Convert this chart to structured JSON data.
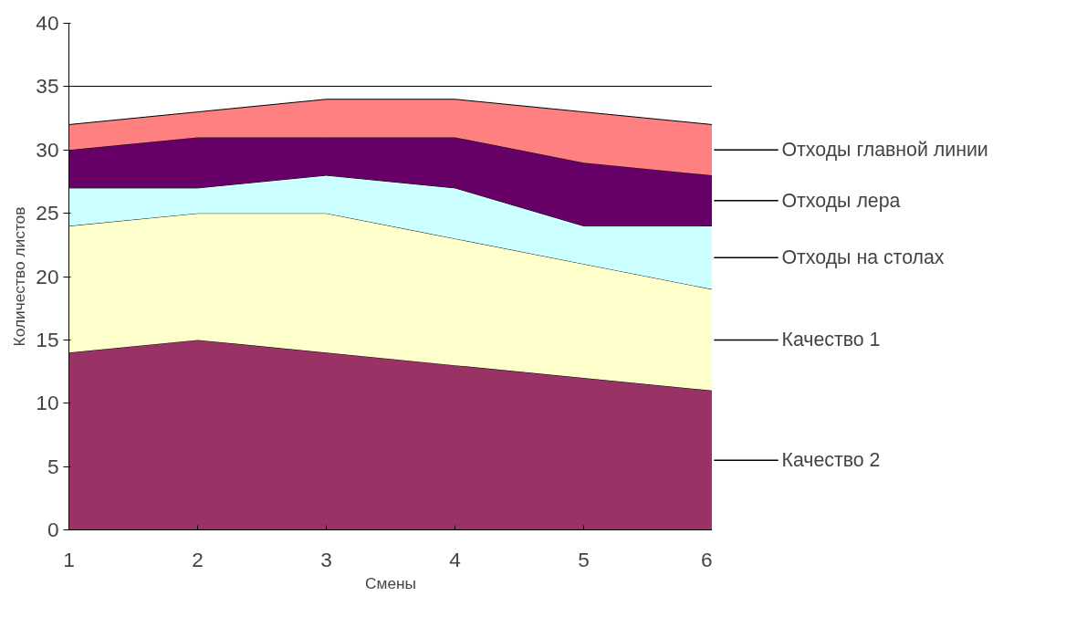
{
  "chart_data": {
    "type": "area",
    "stacked": true,
    "xlabel": "Смены",
    "ylabel": "Количество листов",
    "x": [
      1,
      2,
      3,
      4,
      5,
      6
    ],
    "xlim": [
      1,
      6
    ],
    "xticks": [
      1,
      2,
      3,
      4,
      5,
      6
    ],
    "ylim": [
      0,
      40
    ],
    "yticks": [
      0,
      5,
      10,
      15,
      20,
      25,
      30,
      35,
      40
    ],
    "grid": "y",
    "legend": "right",
    "series": [
      {
        "name": "Качество 2",
        "color": "#993366",
        "values": [
          14,
          15,
          14,
          13,
          12,
          11
        ]
      },
      {
        "name": "Качество 1",
        "color": "#ffffcc",
        "values": [
          10,
          10,
          11,
          10,
          9,
          8
        ]
      },
      {
        "name": "Отходы на столах",
        "color": "#ccffff",
        "values": [
          3,
          2,
          3,
          4,
          3,
          5
        ]
      },
      {
        "name": "Отходы лера",
        "color": "#660066",
        "values": [
          3,
          4,
          3,
          4,
          5,
          4
        ]
      },
      {
        "name": "Отходы главной линии",
        "color": "#ff8080",
        "values": [
          2,
          2,
          3,
          3,
          4,
          4
        ]
      }
    ]
  }
}
